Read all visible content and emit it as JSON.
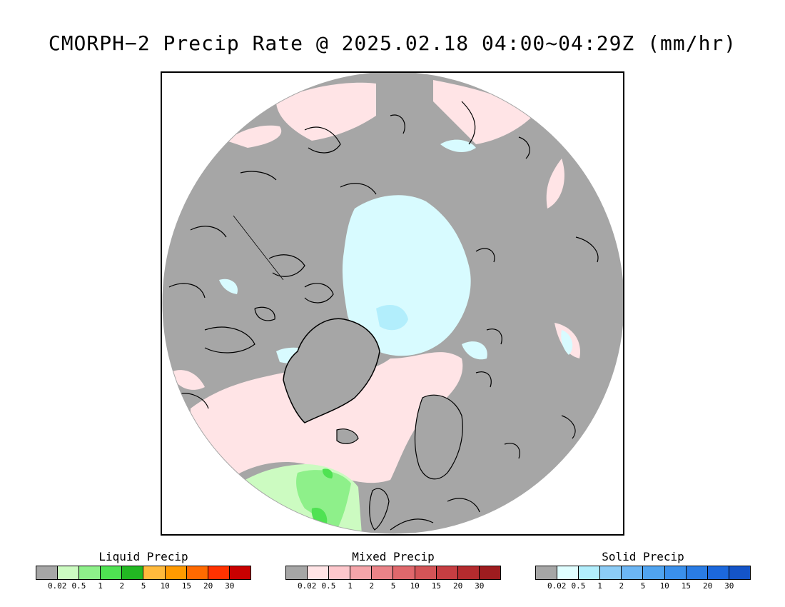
{
  "title": "CMORPH−2 Precip Rate @ 2025.02.18 04:00~04:29Z (mm/hr)",
  "colors": {
    "land": "#a6a6a6",
    "coast": "#000000",
    "no_precip": "#a6a6a6"
  },
  "legends": [
    {
      "title": "Liquid Precip",
      "colors": [
        "#a6a6a6",
        "#ccfbc1",
        "#8ef08a",
        "#4fe252",
        "#22b822",
        "#ffba3c",
        "#ff9a00",
        "#ff6a00",
        "#ff3200",
        "#c80000"
      ],
      "ticks": [
        "0.02",
        "0.5",
        "1",
        "2",
        "5",
        "10",
        "15",
        "20",
        "30"
      ]
    },
    {
      "title": "Mixed Precip",
      "colors": [
        "#a6a6a6",
        "#ffe4e6",
        "#fdc7cc",
        "#f5a5aa",
        "#ea8388",
        "#e0686c",
        "#d45457",
        "#c63e42",
        "#b42b2e",
        "#9e1c1f"
      ],
      "ticks": [
        "0.02",
        "0.5",
        "1",
        "2",
        "5",
        "10",
        "15",
        "20",
        "30"
      ]
    },
    {
      "title": "Solid Precip",
      "colors": [
        "#a6a6a6",
        "#e0feff",
        "#b2eefc",
        "#8cccf6",
        "#6cb6f4",
        "#50a4f0",
        "#3a90ec",
        "#2a7ce4",
        "#1c68dc",
        "#1454c8"
      ],
      "ticks": [
        "0.02",
        "0.5",
        "1",
        "2",
        "5",
        "10",
        "15",
        "20",
        "30"
      ]
    }
  ]
}
